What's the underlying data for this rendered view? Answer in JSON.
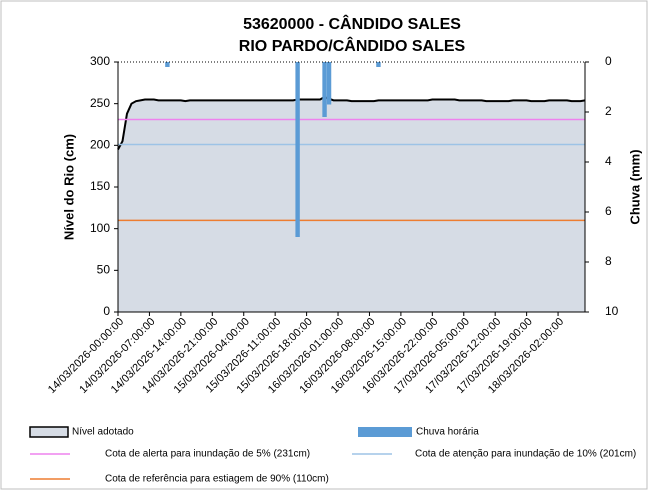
{
  "chart_data": {
    "type": "area-bar",
    "title": "53620000 - CÂNDIDO SALES",
    "subtitle": "RIO PARDO/CÂNDIDO SALES",
    "y_label": "Nível do Rio (cm)",
    "y2_label": "Chuva (mm)",
    "ylim": [
      0,
      300
    ],
    "yticks": [
      0,
      50,
      100,
      150,
      200,
      250,
      300
    ],
    "y2lim": [
      0,
      10
    ],
    "y2ticks": [
      0,
      2,
      4,
      6,
      8,
      10
    ],
    "y2_inverted": true,
    "categories": [
      "14/03/2026-00:00:00",
      null,
      null,
      null,
      null,
      null,
      null,
      "14/03/2026-07:00:00",
      null,
      null,
      null,
      null,
      null,
      null,
      "14/03/2026-14:00:00",
      null,
      null,
      null,
      null,
      null,
      null,
      "14/03/2026-21:00:00",
      null,
      null,
      null,
      null,
      null,
      null,
      "15/03/2026-04:00:00",
      null,
      null,
      null,
      null,
      null,
      null,
      "15/03/2026-11:00:00",
      null,
      null,
      null,
      null,
      null,
      null,
      "15/03/2026-18:00:00",
      null,
      null,
      null,
      null,
      null,
      null,
      "16/03/2026-01:00:00",
      null,
      null,
      null,
      null,
      null,
      null,
      "16/03/2026-08:00:00",
      null,
      null,
      null,
      null,
      null,
      null,
      "16/03/2026-15:00:00",
      null,
      null,
      null,
      null,
      null,
      null,
      "16/03/2026-22:00:00",
      null,
      null,
      null,
      null,
      null,
      null,
      "17/03/2026-05:00:00",
      null,
      null,
      null,
      null,
      null,
      null,
      "17/03/2026-12:00:00",
      null,
      null,
      null,
      null,
      null,
      null,
      "17/03/2026-19:00:00",
      null,
      null,
      null,
      null,
      null,
      null,
      "18/03/2026-02:00:00",
      null,
      null,
      null,
      null,
      null,
      null
    ],
    "series": [
      {
        "name": "Nível adotado",
        "color": "#d6dce5",
        "line_color": "#000000",
        "values": [
          195,
          205,
          238,
          250,
          253,
          254,
          255,
          255,
          255,
          254,
          254,
          254,
          254,
          254,
          254,
          253,
          254,
          254,
          254,
          254,
          254,
          254,
          254,
          254,
          254,
          254,
          254,
          254,
          254,
          254,
          254,
          254,
          254,
          254,
          254,
          254,
          254,
          254,
          254,
          254,
          255,
          255,
          255,
          255,
          255,
          255,
          258,
          256,
          254,
          254,
          254,
          254,
          253,
          253,
          253,
          253,
          253,
          253,
          254,
          254,
          254,
          254,
          254,
          254,
          254,
          254,
          254,
          254,
          254,
          254,
          255,
          255,
          255,
          255,
          255,
          255,
          254,
          254,
          254,
          254,
          254,
          254,
          253,
          253,
          253,
          253,
          253,
          253,
          254,
          254,
          254,
          254,
          253,
          253,
          253,
          253,
          254,
          254,
          254,
          254,
          254,
          253,
          253,
          253,
          254
        ]
      },
      {
        "name": "Chuva horária",
        "color": "#5b9bd5",
        "axis": "y2",
        "values": [
          0,
          0,
          0,
          0,
          0,
          0,
          0,
          0,
          0,
          0,
          0,
          0.2,
          0,
          0,
          0,
          0,
          0,
          0,
          0,
          0,
          0,
          0,
          0,
          0,
          0,
          0,
          0,
          0,
          0,
          0,
          0,
          0,
          0,
          0,
          0,
          0,
          0,
          0,
          0,
          0,
          7.0,
          0,
          0,
          0,
          0,
          0,
          2.2,
          1.7,
          0,
          0,
          0,
          0,
          0,
          0,
          0,
          0,
          0,
          0,
          0.2,
          0,
          0,
          0,
          0,
          0,
          0,
          0,
          0,
          0,
          0,
          0,
          0,
          0,
          0,
          0,
          0,
          0,
          0,
          0,
          0,
          0,
          0,
          0,
          0,
          0,
          0,
          0,
          0,
          0,
          0,
          0,
          0,
          0,
          0,
          0,
          0,
          0,
          0,
          0,
          0,
          0,
          0,
          0,
          0,
          0,
          0
        ]
      }
    ],
    "reference_lines": [
      {
        "name": "Cota de alerta para inundação de 5% (231cm)",
        "value": 231,
        "color": "#ee82ee"
      },
      {
        "name": "Cota de atenção para inundação de 10% (201cm)",
        "value": 201,
        "color": "#9dc3e6"
      },
      {
        "name": "Cota de referência para estiagem de 90% (110cm)",
        "value": 110,
        "color": "#ed7d31"
      }
    ]
  }
}
